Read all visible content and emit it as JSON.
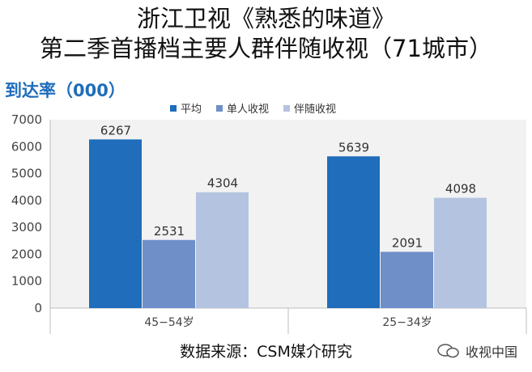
{
  "header": {
    "title_line1": "浙江卫视《熟悉的味道》",
    "title_line2": "第二季首播档主要人群伴随收视（71城市）"
  },
  "footer": {
    "source": "数据来源：CSM媒介研究",
    "watermark": "收视中国"
  },
  "colors": {
    "avg": "#1f6dbb",
    "single": "#6e8fc8",
    "companion": "#b4c3e0",
    "plot_bg": "#f2f2f2",
    "ylabel": "#1f6dbb"
  },
  "chart_data": {
    "type": "bar",
    "ylabel": "到达率（000）",
    "categories": [
      "45−54岁",
      "25−34岁"
    ],
    "series": [
      {
        "name": "平均",
        "values": [
          6267,
          5639
        ]
      },
      {
        "name": "单人收视",
        "values": [
          2531,
          2091
        ]
      },
      {
        "name": "伴随收视",
        "values": [
          4304,
          4098
        ]
      }
    ],
    "ylim": [
      0,
      7000
    ],
    "yticks": [
      0,
      1000,
      2000,
      3000,
      4000,
      5000,
      6000,
      7000
    ],
    "grid": false,
    "legend_position": "top"
  }
}
